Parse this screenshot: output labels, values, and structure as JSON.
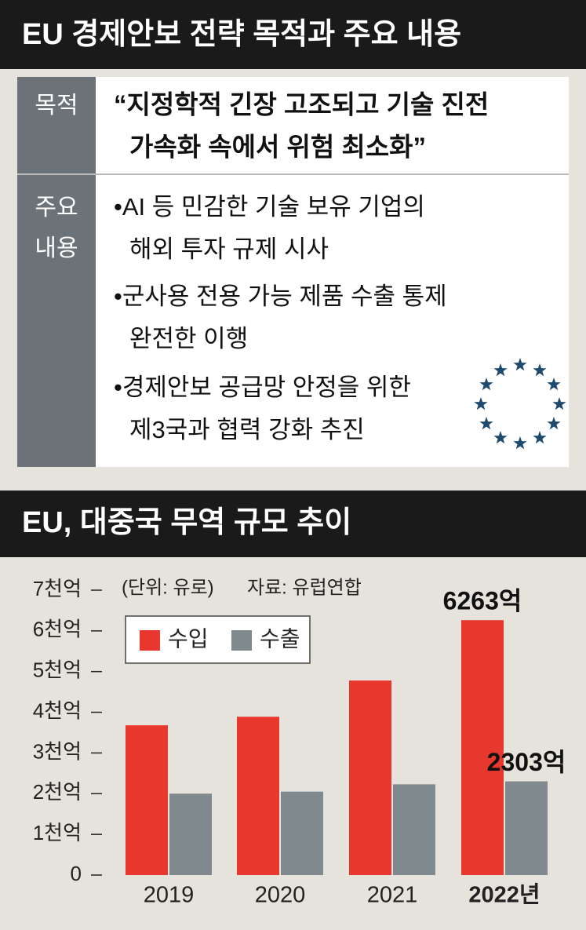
{
  "header": {
    "title": "EU 경제안보 전략 목적과 주요 내용"
  },
  "table": {
    "rows": [
      {
        "label": [
          "목적"
        ],
        "lines": [
          "“지정학적 긴장 고조되고 기술 진전",
          "가속화 속에서 위험 최소화”"
        ]
      },
      {
        "label": [
          "주요",
          "내용"
        ],
        "lines": [
          "•AI 등 민감한 기술 보유 기업의",
          "해외 투자 규제 시사",
          "•군사용 전용 가능 제품 수출 통제",
          "완전한 이행",
          "•경제안보 공급망 안정을 위한",
          "제3국과 협력 강화 추진"
        ]
      }
    ]
  },
  "chart_data": {
    "type": "bar",
    "title": "EU, 대중국 무역 규모 추이",
    "subtitle": "(단위: 유로)",
    "source": "자료: 유럽연합",
    "categories": [
      "2019",
      "2020",
      "2021",
      "2022년"
    ],
    "series": [
      {
        "name": "수입",
        "color": "#e8382d",
        "values": [
          3680,
          3890,
          4780,
          6263
        ],
        "value_labels": [
          null,
          null,
          null,
          "6263억"
        ]
      },
      {
        "name": "수출",
        "color": "#7f898e",
        "values": [
          2000,
          2050,
          2230,
          2303
        ],
        "value_labels": [
          null,
          null,
          null,
          "2303억"
        ]
      }
    ],
    "ylim": [
      0,
      7000
    ],
    "yticks": [
      0,
      {
        "value": 1000,
        "label": "1천억"
      },
      {
        "value": 2000,
        "label": "2천억"
      },
      {
        "value": 3000,
        "label": "3천억"
      },
      {
        "value": 4000,
        "label": "4천억"
      },
      {
        "value": 5000,
        "label": "5천억"
      },
      {
        "value": 6000,
        "label": "6천억"
      },
      {
        "value": 7000,
        "label": "7천억"
      }
    ],
    "grid": false,
    "legend": "top-left"
  }
}
